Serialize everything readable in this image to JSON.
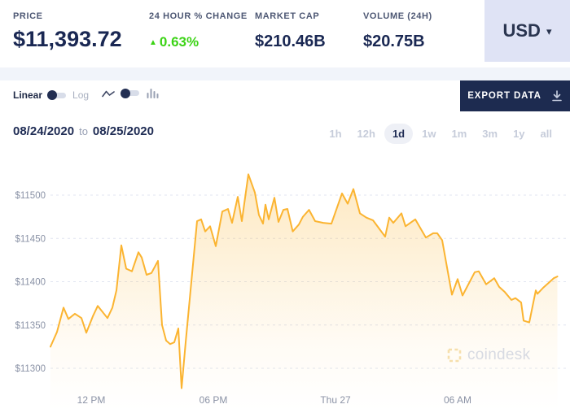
{
  "header": {
    "price": {
      "label": "PRICE",
      "value": "$11,393.72"
    },
    "change": {
      "label": "24 HOUR % CHANGE",
      "value": "0.63%",
      "direction": "up"
    },
    "market_cap": {
      "label": "MARKET CAP",
      "value": "$210.46B"
    },
    "volume": {
      "label": "VOLUME (24H)",
      "value": "$20.75B"
    },
    "currency": {
      "value": "USD"
    }
  },
  "toolbar": {
    "scale": {
      "linear_label": "Linear",
      "log_label": "Log",
      "selected": "Linear"
    },
    "chart_type_selected": "line",
    "export_label": "EXPORT DATA"
  },
  "range_row": {
    "start_date": "08/24/2020",
    "separator": "to",
    "end_date": "08/25/2020",
    "intervals": [
      "1h",
      "12h",
      "1d",
      "1w",
      "1m",
      "3m",
      "1y",
      "all"
    ],
    "selected_interval": "1d"
  },
  "watermark": {
    "text": "coindesk"
  },
  "colors": {
    "accent_yellow": "#FBB431",
    "positive_green": "#3CD316",
    "navy": "#1D2B50",
    "currency_bg": "#DFE3F5"
  },
  "chart_data": {
    "type": "area",
    "x_axis": {
      "unit": "time",
      "range_hours": [
        0,
        25.4
      ],
      "ticks": [
        {
          "hour": 2,
          "label": "12 PM"
        },
        {
          "hour": 8,
          "label": "06 PM"
        },
        {
          "hour": 14,
          "label": "Thu 27"
        },
        {
          "hour": 20,
          "label": "06 AM"
        }
      ]
    },
    "y_axis": {
      "unit": "USD",
      "ylim": [
        11260,
        11540
      ],
      "ticks": [
        {
          "value": 11300,
          "label": "$11300"
        },
        {
          "value": 11350,
          "label": "$11350"
        },
        {
          "value": 11400,
          "label": "$11400"
        },
        {
          "value": 11450,
          "label": "$11450"
        },
        {
          "value": 11500,
          "label": "$11500"
        }
      ]
    },
    "grid": "dashed-horizontal",
    "legend": "none",
    "series": [
      {
        "name": "price",
        "color": "#FBB431",
        "points": [
          [
            0,
            11325
          ],
          [
            0.32,
            11342
          ],
          [
            0.64,
            11370
          ],
          [
            0.88,
            11357
          ],
          [
            1.2,
            11363
          ],
          [
            1.52,
            11358
          ],
          [
            1.76,
            11341
          ],
          [
            2.08,
            11360
          ],
          [
            2.32,
            11372
          ],
          [
            2.56,
            11365
          ],
          [
            2.8,
            11358
          ],
          [
            3.04,
            11370
          ],
          [
            3.24,
            11390
          ],
          [
            3.48,
            11442
          ],
          [
            3.72,
            11415
          ],
          [
            4,
            11412
          ],
          [
            4.32,
            11434
          ],
          [
            4.48,
            11428
          ],
          [
            4.72,
            11408
          ],
          [
            4.96,
            11410
          ],
          [
            5.28,
            11424
          ],
          [
            5.48,
            11350
          ],
          [
            5.68,
            11332
          ],
          [
            5.88,
            11328
          ],
          [
            6.08,
            11330
          ],
          [
            6.28,
            11346
          ],
          [
            6.44,
            11277
          ],
          [
            6.64,
            11330
          ],
          [
            6.88,
            11390
          ],
          [
            7.2,
            11470
          ],
          [
            7.4,
            11472
          ],
          [
            7.6,
            11458
          ],
          [
            7.84,
            11464
          ],
          [
            8.12,
            11441
          ],
          [
            8.44,
            11481
          ],
          [
            8.72,
            11484
          ],
          [
            8.92,
            11468
          ],
          [
            9.2,
            11498
          ],
          [
            9.4,
            11470
          ],
          [
            9.72,
            11524
          ],
          [
            10.04,
            11503
          ],
          [
            10.24,
            11477
          ],
          [
            10.44,
            11467
          ],
          [
            10.56,
            11489
          ],
          [
            10.72,
            11472
          ],
          [
            11,
            11497
          ],
          [
            11.2,
            11469
          ],
          [
            11.44,
            11483
          ],
          [
            11.64,
            11484
          ],
          [
            11.9,
            11458
          ],
          [
            12.2,
            11466
          ],
          [
            12.4,
            11475
          ],
          [
            12.7,
            11483
          ],
          [
            13,
            11470
          ],
          [
            13.4,
            11468
          ],
          [
            13.8,
            11467
          ],
          [
            14.32,
            11502
          ],
          [
            14.6,
            11490
          ],
          [
            14.88,
            11507
          ],
          [
            15.2,
            11479
          ],
          [
            15.52,
            11474
          ],
          [
            15.84,
            11471
          ],
          [
            16.44,
            11452
          ],
          [
            16.64,
            11474
          ],
          [
            16.84,
            11468
          ],
          [
            17.24,
            11479
          ],
          [
            17.44,
            11464
          ],
          [
            17.92,
            11472
          ],
          [
            18.44,
            11451
          ],
          [
            18.8,
            11456
          ],
          [
            19,
            11456
          ],
          [
            19.24,
            11448
          ],
          [
            19.72,
            11385
          ],
          [
            20,
            11403
          ],
          [
            20.24,
            11384
          ],
          [
            20.84,
            11411
          ],
          [
            21.04,
            11412
          ],
          [
            21.4,
            11397
          ],
          [
            21.8,
            11404
          ],
          [
            22.04,
            11394
          ],
          [
            22.32,
            11388
          ],
          [
            22.64,
            11379
          ],
          [
            22.84,
            11381
          ],
          [
            23.12,
            11376
          ],
          [
            23.24,
            11355
          ],
          [
            23.52,
            11353
          ],
          [
            23.84,
            11390
          ],
          [
            23.92,
            11386
          ],
          [
            24.2,
            11393
          ],
          [
            24.44,
            11398
          ],
          [
            24.72,
            11404
          ],
          [
            24.9,
            11406
          ]
        ]
      }
    ]
  }
}
